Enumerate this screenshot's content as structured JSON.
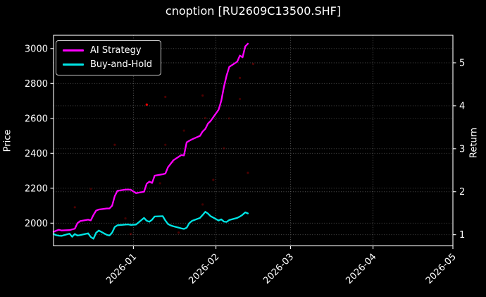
{
  "chart_data": {
    "type": "line",
    "title": "cnoption [RU2609C13500.SHF]",
    "background_color": "#000000",
    "text_color": "#ffffff",
    "grid": true,
    "grid_style": "dotted",
    "legend_position": "upper-left",
    "x_axis": {
      "range": [
        "2025-12-02",
        "2026-05-01"
      ],
      "ticks": [
        {
          "value": "2026-01-01",
          "label": "2026-01"
        },
        {
          "value": "2026-02-01",
          "label": "2026-02"
        },
        {
          "value": "2026-03-01",
          "label": "2026-03"
        },
        {
          "value": "2026-04-01",
          "label": "2026-04"
        },
        {
          "value": "2026-05-01",
          "label": "2026-05"
        }
      ],
      "tick_label_rotation": 45
    },
    "y_axis_left": {
      "label": "Price",
      "range": [
        1870,
        3076
      ],
      "ticks": [
        2000,
        2200,
        2400,
        2600,
        2800,
        3000
      ]
    },
    "y_axis_right": {
      "label": "Return",
      "range": [
        0.74,
        5.64
      ],
      "ticks": [
        1,
        2,
        3,
        4,
        5
      ]
    },
    "dates": [
      "2025-12-02",
      "2025-12-03",
      "2025-12-04",
      "2025-12-05",
      "2025-12-08",
      "2025-12-09",
      "2025-12-10",
      "2025-12-11",
      "2025-12-12",
      "2025-12-15",
      "2025-12-16",
      "2025-12-17",
      "2025-12-18",
      "2025-12-19",
      "2025-12-22",
      "2025-12-23",
      "2025-12-24",
      "2025-12-25",
      "2025-12-26",
      "2025-12-29",
      "2025-12-30",
      "2025-12-31",
      "2026-01-02",
      "2026-01-05",
      "2026-01-06",
      "2026-01-07",
      "2026-01-08",
      "2026-01-09",
      "2026-01-12",
      "2026-01-13",
      "2026-01-14",
      "2026-01-15",
      "2026-01-16",
      "2026-01-19",
      "2026-01-20",
      "2026-01-21",
      "2026-01-22",
      "2026-01-23",
      "2026-01-26",
      "2026-01-27",
      "2026-01-28",
      "2026-01-29",
      "2026-01-30",
      "2026-02-02",
      "2026-02-03",
      "2026-02-04",
      "2026-02-05",
      "2026-02-06",
      "2026-02-09",
      "2026-02-10",
      "2026-02-11",
      "2026-02-12",
      "2026-02-13"
    ],
    "series": [
      {
        "name": "AI Strategy",
        "color": "#ff00ff",
        "axis": "left",
        "values": [
          1950,
          1957,
          1962,
          1958,
          1960,
          1964,
          1968,
          2000,
          2012,
          2020,
          2016,
          2047,
          2072,
          2078,
          2084,
          2084,
          2100,
          2155,
          2185,
          2192,
          2193,
          2191,
          2172,
          2180,
          2226,
          2238,
          2230,
          2272,
          2280,
          2284,
          2320,
          2340,
          2360,
          2390,
          2388,
          2463,
          2472,
          2480,
          2500,
          2525,
          2540,
          2570,
          2585,
          2650,
          2700,
          2780,
          2845,
          2895,
          2925,
          2960,
          2950,
          3012,
          3028
        ]
      },
      {
        "name": "Buy-and-Hold",
        "color": "#00e5e5",
        "axis": "left",
        "values": [
          1938,
          1931,
          1928,
          1927,
          1940,
          1922,
          1938,
          1929,
          1932,
          1942,
          1921,
          1911,
          1945,
          1958,
          1933,
          1929,
          1946,
          1978,
          1988,
          1992,
          1993,
          1990,
          1992,
          2030,
          2014,
          2008,
          2020,
          2038,
          2040,
          2015,
          1995,
          1987,
          1982,
          1970,
          1967,
          1974,
          2000,
          2013,
          2030,
          2047,
          2065,
          2055,
          2040,
          2015,
          2022,
          2009,
          2007,
          2018,
          2030,
          2038,
          2048,
          2062,
          2056
        ]
      }
    ],
    "signal_dots": {
      "color": "#ff0000",
      "points": [
        {
          "date": "2025-12-10",
          "price": 2091,
          "opacity": 0.3
        },
        {
          "date": "2025-12-16",
          "price": 2196,
          "opacity": 0.25
        },
        {
          "date": "2025-12-25",
          "price": 2449,
          "opacity": 0.3
        },
        {
          "date": "2025-12-29",
          "price": 2027,
          "opacity": 0.25
        },
        {
          "date": "2025-12-31",
          "price": 1938,
          "opacity": 0.3
        },
        {
          "date": "2026-01-06",
          "price": 2679,
          "opacity": 1.0
        },
        {
          "date": "2026-01-11",
          "price": 2228,
          "opacity": 0.25
        },
        {
          "date": "2026-01-13",
          "price": 2723,
          "opacity": 0.3
        },
        {
          "date": "2026-01-13",
          "price": 2449,
          "opacity": 0.25
        },
        {
          "date": "2026-01-16",
          "price": 2350,
          "opacity": 0.2
        },
        {
          "date": "2026-01-18",
          "price": 1946,
          "opacity": 0.3
        },
        {
          "date": "2026-01-20",
          "price": 2530,
          "opacity": 0.25
        },
        {
          "date": "2026-01-27",
          "price": 2731,
          "opacity": 0.3
        },
        {
          "date": "2026-01-27",
          "price": 2107,
          "opacity": 0.25
        },
        {
          "date": "2026-01-28",
          "price": 2602,
          "opacity": 0.25
        },
        {
          "date": "2026-01-31",
          "price": 2248,
          "opacity": 0.3
        },
        {
          "date": "2026-02-04",
          "price": 2429,
          "opacity": 0.25
        },
        {
          "date": "2026-02-06",
          "price": 2600,
          "opacity": 0.2
        },
        {
          "date": "2026-02-10",
          "price": 2832,
          "opacity": 0.3
        },
        {
          "date": "2026-02-10",
          "price": 2711,
          "opacity": 0.25
        },
        {
          "date": "2026-02-13",
          "price": 2288,
          "opacity": 0.3
        },
        {
          "date": "2026-02-15",
          "price": 2912,
          "opacity": 0.3
        }
      ]
    }
  }
}
